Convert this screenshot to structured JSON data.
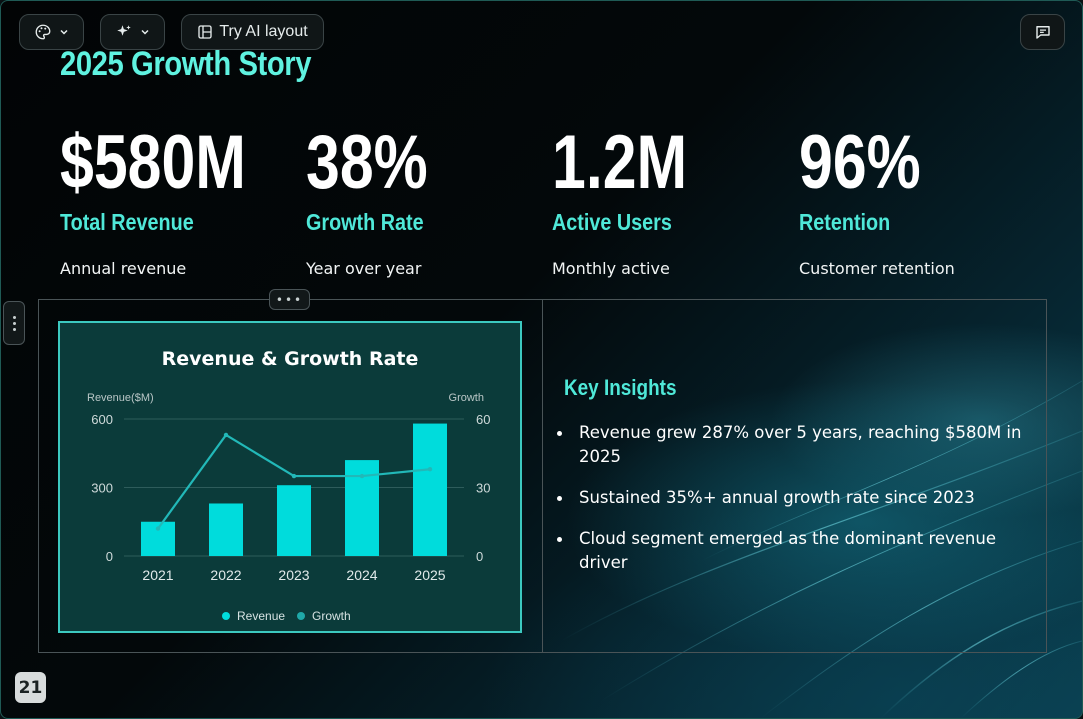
{
  "toolbar": {
    "theme_icon": "palette-icon",
    "ai_icon": "sparkles-icon",
    "layout_icon": "layout-icon",
    "layout_label": "Try AI layout",
    "comment_icon": "comment-icon"
  },
  "slide": {
    "title": "2025 Growth Story",
    "stats": [
      {
        "value": "$580M",
        "label": "Total Revenue",
        "desc": "Annual revenue"
      },
      {
        "value": "38%",
        "label": "Growth Rate",
        "desc": "Year over year"
      },
      {
        "value": "1.2M",
        "label": "Active Users",
        "desc": "Monthly active"
      },
      {
        "value": "96%",
        "label": "Retention",
        "desc": "Customer retention"
      }
    ],
    "insights_title": "Key Insights",
    "insights": [
      "Revenue grew 287% over 5 years, reaching $580M in 2025",
      "Sustained 35%+ annual growth rate since 2023",
      "Cloud segment emerged as the dominant revenue driver"
    ],
    "page_number": "21"
  },
  "chart_data": {
    "type": "bar",
    "title": "Revenue & Growth Rate",
    "categories": [
      "2021",
      "2022",
      "2023",
      "2024",
      "2025"
    ],
    "series": [
      {
        "name": "Revenue",
        "type": "bar",
        "axis": "left",
        "values": [
          150,
          230,
          310,
          420,
          580
        ]
      },
      {
        "name": "Growth",
        "type": "line",
        "axis": "right",
        "values": [
          12,
          53,
          35,
          35,
          38
        ]
      }
    ],
    "ylabel": "Revenue($M)",
    "y2label": "Growth",
    "ylim": [
      0,
      600
    ],
    "y2lim": [
      0,
      60
    ],
    "yticks": [
      "0",
      "300",
      "600"
    ],
    "y2ticks": [
      "0",
      "30",
      "60"
    ],
    "legend": [
      "Revenue",
      "Growth"
    ],
    "legend_position": "bottom",
    "colors": {
      "bar": "#00dcdc",
      "line": "#22b8b8",
      "legend_growth": "#1fa8a8"
    },
    "grid": true
  }
}
